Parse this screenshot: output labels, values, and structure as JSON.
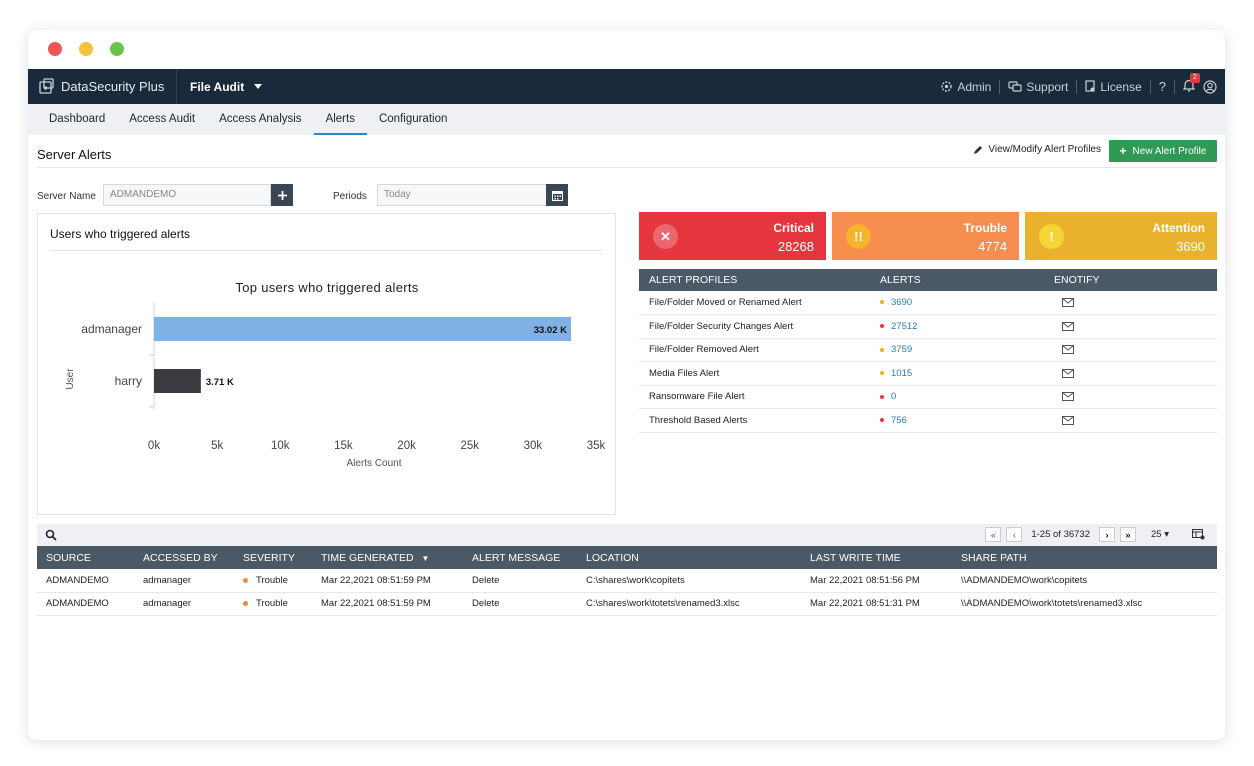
{
  "colors": {
    "critical": "#e5353f",
    "trouble": "#f58e4f",
    "attention": "#eab22c",
    "header_bg": "#1b2a3a",
    "accent_green": "#2e9a55",
    "bar_primary": "#7fb1e4",
    "bar_secondary": "#3a3b40"
  },
  "topbar": {
    "brand": "DataSecurity Plus",
    "module": "File Audit",
    "admin": "Admin",
    "support": "Support",
    "license": "License",
    "help": "?",
    "notification_count": "2"
  },
  "nav": {
    "tabs": [
      {
        "label": "Dashboard"
      },
      {
        "label": "Access Audit"
      },
      {
        "label": "Access Analysis"
      },
      {
        "label": "Alerts"
      },
      {
        "label": "Configuration"
      }
    ],
    "active": "Alerts"
  },
  "page": {
    "title": "Server Alerts",
    "modify_link": "View/Modify Alert Profiles",
    "new_button": "New Alert Profile"
  },
  "filters": {
    "server_label": "Server Name",
    "server_value": "ADMANDEMO",
    "periods_label": "Periods",
    "periods_value": "Today"
  },
  "chart_panel": {
    "heading": "Users who triggered alerts"
  },
  "chart_data": {
    "type": "bar",
    "orientation": "horizontal",
    "title": "Top users who triggered alerts",
    "xlabel": "Alerts Count",
    "ylabel": "User",
    "categories": [
      "admanager",
      "harry"
    ],
    "values": [
      33020,
      3710
    ],
    "data_labels": [
      "33.02 K",
      "3.71 K"
    ],
    "xlim": [
      0,
      35000
    ],
    "xticks": [
      "0k",
      "5k",
      "10k",
      "15k",
      "20k",
      "25k",
      "30k",
      "35k"
    ],
    "grid": false
  },
  "severity": [
    {
      "label": "Critical",
      "value": "28268",
      "icon": "close-icon",
      "glyph": "✕"
    },
    {
      "label": "Trouble",
      "value": "4774",
      "icon": "double-exclamation-icon",
      "glyph": "!!"
    },
    {
      "label": "Attention",
      "value": "3690",
      "icon": "exclamation-icon",
      "glyph": "!"
    }
  ],
  "alert_profiles": {
    "headers": [
      "ALERT PROFILES",
      "ALERTS",
      "ENOTIFY"
    ],
    "rows": [
      {
        "name": "File/Folder Moved or Renamed Alert",
        "count": "3690",
        "severity": "attention"
      },
      {
        "name": "File/Folder Security Changes Alert",
        "count": "27512",
        "severity": "critical"
      },
      {
        "name": "File/Folder Removed Alert",
        "count": "3759",
        "severity": "attention"
      },
      {
        "name": "Media Files Alert",
        "count": "1015",
        "severity": "attention"
      },
      {
        "name": "Ransomware File Alert",
        "count": "0",
        "severity": "critical"
      },
      {
        "name": "Threshold Based Alerts",
        "count": "756",
        "severity": "critical"
      }
    ]
  },
  "pager": {
    "range": "1-25 of 36732",
    "page_size": "25"
  },
  "events": {
    "headers": [
      "SOURCE",
      "ACCESSED BY",
      "SEVERITY",
      "TIME GENERATED",
      "ALERT MESSAGE",
      "LOCATION",
      "LAST WRITE TIME",
      "SHARE PATH"
    ],
    "rows": [
      {
        "source": "ADMANDEMO",
        "accessed_by": "admanager",
        "severity": "Trouble",
        "time": "Mar 22,2021 08:51:59 PM",
        "message": "Delete",
        "location": "C:\\shares\\work\\copitets",
        "last_write": "Mar 22,2021 08:51:56 PM",
        "share": "\\\\ADMANDEMO\\work\\copitets"
      },
      {
        "source": "ADMANDEMO",
        "accessed_by": "admanager",
        "severity": "Trouble",
        "time": "Mar 22,2021 08:51:59 PM",
        "message": "Delete",
        "location": "C:\\shares\\work\\totets\\renamed3.xlsc",
        "last_write": "Mar 22,2021 08:51:31 PM",
        "share": "\\\\ADMANDEMO\\work\\totets\\renamed3.xlsc"
      }
    ]
  }
}
